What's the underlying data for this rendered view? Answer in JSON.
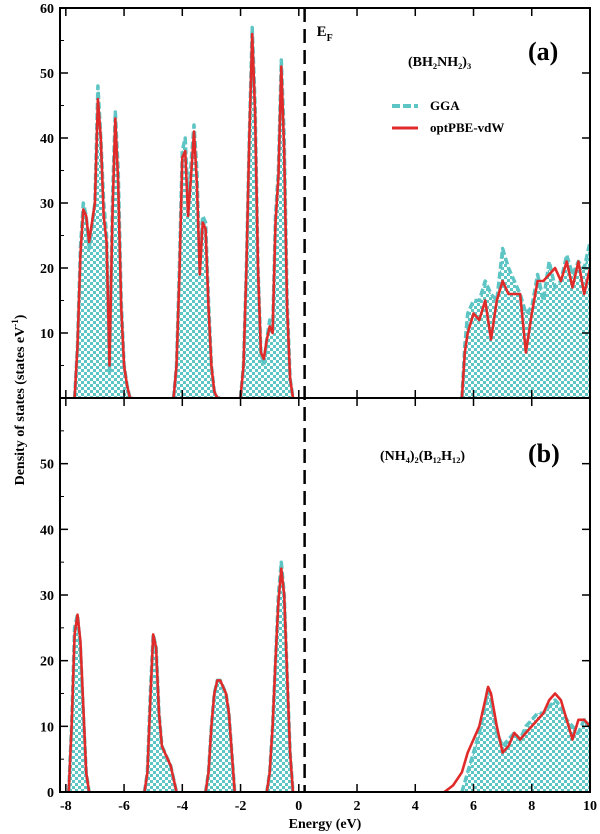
{
  "chart_data": {
    "type": "area",
    "xlabel": "Energy (eV)",
    "ylabel": "Density of states (states eV",
    "ylabel_sup": "-1",
    "ylabel_close": ")",
    "xlim": [
      -8.2,
      10
    ],
    "xticks": [
      -8,
      -6,
      -4,
      -2,
      0,
      2,
      4,
      6,
      8,
      10
    ],
    "fermi_level": 0.2,
    "fermi_label": "E",
    "fermi_sub": "F",
    "legend": {
      "location": "upper-right",
      "entries": [
        {
          "label": "GGA",
          "color": "#5ec5c5",
          "style": "dashed-fill"
        },
        {
          "label": "optPBE-vdW",
          "color": "#e02b2b",
          "style": "solid"
        }
      ]
    },
    "panels": [
      {
        "panel_label": "(a)",
        "compound": "(BH₂NH₂)₃",
        "ylim": [
          0,
          60
        ],
        "yticks": [
          10,
          20,
          30,
          40,
          50,
          60
        ],
        "series": [
          {
            "name": "GGA",
            "x": [
              -7.7,
              -7.6,
              -7.5,
              -7.4,
              -7.3,
              -7.2,
              -7.0,
              -6.9,
              -6.8,
              -6.7,
              -6.6,
              -6.5,
              -6.4,
              -6.3,
              -6.2,
              -6.1,
              -6.0,
              -5.9,
              -5.8,
              -5.7,
              -4.3,
              -4.2,
              -4.1,
              -4.0,
              -3.9,
              -3.8,
              -3.7,
              -3.6,
              -3.5,
              -3.4,
              -3.3,
              -3.2,
              -3.1,
              -3.0,
              -2.9,
              -2.8,
              -2.7,
              -2.0,
              -1.9,
              -1.8,
              -1.7,
              -1.6,
              -1.5,
              -1.4,
              -1.3,
              -1.2,
              -1.1,
              -1.0,
              -0.9,
              -0.8,
              -0.7,
              -0.6,
              -0.5,
              -0.4,
              -0.3,
              -0.2,
              5.6,
              5.7,
              5.8,
              6.0,
              6.2,
              6.4,
              6.6,
              6.8,
              7.0,
              7.2,
              7.4,
              7.6,
              7.8,
              8.0,
              8.2,
              8.4,
              8.6,
              8.8,
              9.0,
              9.2,
              9.4,
              9.6,
              9.8,
              10.0
            ],
            "y": [
              0,
              8,
              23,
              30,
              28,
              23,
              30,
              48,
              40,
              30,
              25,
              4,
              30,
              44,
              35,
              15,
              5,
              2,
              0,
              0,
              0,
              5,
              20,
              38,
              40,
              30,
              36,
              42,
              35,
              20,
              28,
              27,
              15,
              5,
              1,
              0,
              0,
              0,
              5,
              20,
              40,
              57,
              45,
              20,
              7,
              5,
              9,
              12,
              10,
              28,
              35,
              52,
              40,
              15,
              3,
              0,
              0,
              8,
              13,
              15,
              15,
              18,
              16,
              15,
              23,
              20,
              18,
              16,
              13,
              14,
              19,
              15,
              21,
              17,
              18,
              22,
              19,
              21,
              20,
              24
            ]
          },
          {
            "name": "optPBE-vdW",
            "x": [
              -7.7,
              -7.6,
              -7.5,
              -7.4,
              -7.3,
              -7.2,
              -7.0,
              -6.9,
              -6.8,
              -6.7,
              -6.6,
              -6.5,
              -6.4,
              -6.3,
              -6.2,
              -6.1,
              -6.0,
              -5.9,
              -5.8,
              -5.7,
              -4.3,
              -4.2,
              -4.1,
              -4.0,
              -3.9,
              -3.8,
              -3.7,
              -3.6,
              -3.5,
              -3.4,
              -3.3,
              -3.2,
              -3.1,
              -3.0,
              -2.9,
              -2.8,
              -2.7,
              -2.0,
              -1.9,
              -1.8,
              -1.7,
              -1.6,
              -1.5,
              -1.4,
              -1.3,
              -1.2,
              -1.1,
              -1.0,
              -0.9,
              -0.8,
              -0.7,
              -0.6,
              -0.5,
              -0.4,
              -0.3,
              -0.2,
              5.6,
              5.7,
              5.8,
              6.0,
              6.2,
              6.4,
              6.6,
              6.8,
              7.0,
              7.2,
              7.4,
              7.6,
              7.8,
              8.0,
              8.2,
              8.4,
              8.6,
              8.8,
              9.0,
              9.2,
              9.4,
              9.6,
              9.8,
              10.0
            ],
            "y": [
              0,
              8,
              22,
              29,
              28,
              24,
              30,
              46,
              40,
              28,
              24,
              5,
              28,
              43,
              33,
              14,
              5,
              2,
              0,
              0,
              0,
              5,
              19,
              37,
              38,
              28,
              34,
              41,
              33,
              19,
              27,
              26,
              14,
              5,
              1,
              0,
              0,
              0,
              5,
              20,
              40,
              56,
              44,
              20,
              7,
              6,
              9,
              11,
              10,
              27,
              34,
              51,
              38,
              14,
              3,
              0,
              0,
              7,
              10,
              13,
              12,
              15,
              9,
              15,
              18,
              16,
              16,
              16,
              7,
              13,
              18,
              18,
              19,
              20,
              18,
              21,
              17,
              21,
              16,
              20
            ]
          }
        ]
      },
      {
        "panel_label": "(b)",
        "compound": "(NH₄)₂(B₁₂H₁₂)",
        "ylim": [
          0,
          60
        ],
        "yticks": [
          0,
          10,
          20,
          30,
          40,
          50
        ],
        "series": [
          {
            "name": "GGA",
            "x": [
              -7.9,
              -7.8,
              -7.7,
              -7.6,
              -7.5,
              -7.4,
              -7.3,
              -7.2,
              -5.3,
              -5.2,
              -5.1,
              -5.0,
              -4.9,
              -4.8,
              -4.7,
              -4.6,
              -4.5,
              -4.4,
              -4.3,
              -4.2,
              -3.2,
              -3.1,
              -3.0,
              -2.9,
              -2.8,
              -2.7,
              -2.6,
              -2.5,
              -2.4,
              -2.3,
              -2.2,
              -1.1,
              -1.0,
              -0.9,
              -0.8,
              -0.7,
              -0.6,
              -0.5,
              -0.4,
              -0.3,
              -0.2,
              5.6,
              5.8,
              6.0,
              6.2,
              6.4,
              6.5,
              6.6,
              6.8,
              7.0,
              7.2,
              7.4,
              7.6,
              7.8,
              8.0,
              8.2,
              8.4,
              8.6,
              8.8,
              9.0,
              9.2,
              9.4,
              9.6,
              9.8,
              10.0
            ],
            "y": [
              0,
              10,
              25,
              27,
              22,
              12,
              3,
              0,
              0,
              3,
              15,
              24,
              22,
              12,
              7,
              6,
              5,
              4,
              2,
              0,
              0,
              3,
              10,
              15,
              17,
              17,
              16,
              15,
              12,
              6,
              0,
              0,
              3,
              10,
              20,
              30,
              35,
              30,
              18,
              6,
              0,
              0,
              3,
              6,
              9,
              13,
              16,
              14,
              9,
              7,
              8,
              9,
              8,
              10,
              11,
              12,
              12,
              13,
              14,
              13,
              11,
              10,
              9,
              11,
              10
            ]
          },
          {
            "name": "optPBE-vdW",
            "x": [
              -7.9,
              -7.8,
              -7.7,
              -7.6,
              -7.5,
              -7.4,
              -7.3,
              -7.2,
              -5.3,
              -5.2,
              -5.1,
              -5.0,
              -4.9,
              -4.8,
              -4.7,
              -4.6,
              -4.5,
              -4.4,
              -4.3,
              -4.2,
              -3.2,
              -3.1,
              -3.0,
              -2.9,
              -2.8,
              -2.7,
              -2.6,
              -2.5,
              -2.4,
              -2.3,
              -2.2,
              -1.1,
              -1.0,
              -0.9,
              -0.8,
              -0.7,
              -0.6,
              -0.5,
              -0.4,
              -0.3,
              -0.2,
              5.0,
              5.3,
              5.6,
              5.8,
              6.0,
              6.2,
              6.4,
              6.5,
              6.6,
              6.8,
              7.0,
              7.2,
              7.4,
              7.6,
              7.8,
              8.0,
              8.2,
              8.4,
              8.6,
              8.8,
              9.0,
              9.2,
              9.4,
              9.6,
              9.8,
              10.0
            ],
            "y": [
              0,
              10,
              24,
              27,
              23,
              13,
              3,
              0,
              0,
              3,
              14,
              24,
              22,
              12,
              7,
              6,
              5,
              4,
              2,
              0,
              0,
              3,
              10,
              15,
              17,
              17,
              16,
              15,
              12,
              6,
              0,
              0,
              3,
              10,
              20,
              29,
              34,
              30,
              18,
              6,
              0,
              0,
              1,
              3,
              6,
              8,
              10,
              14,
              16,
              15,
              10,
              6,
              7,
              9,
              8,
              9,
              10,
              11,
              12,
              14,
              15,
              14,
              11,
              8,
              11,
              11,
              10
            ]
          }
        ]
      }
    ]
  }
}
